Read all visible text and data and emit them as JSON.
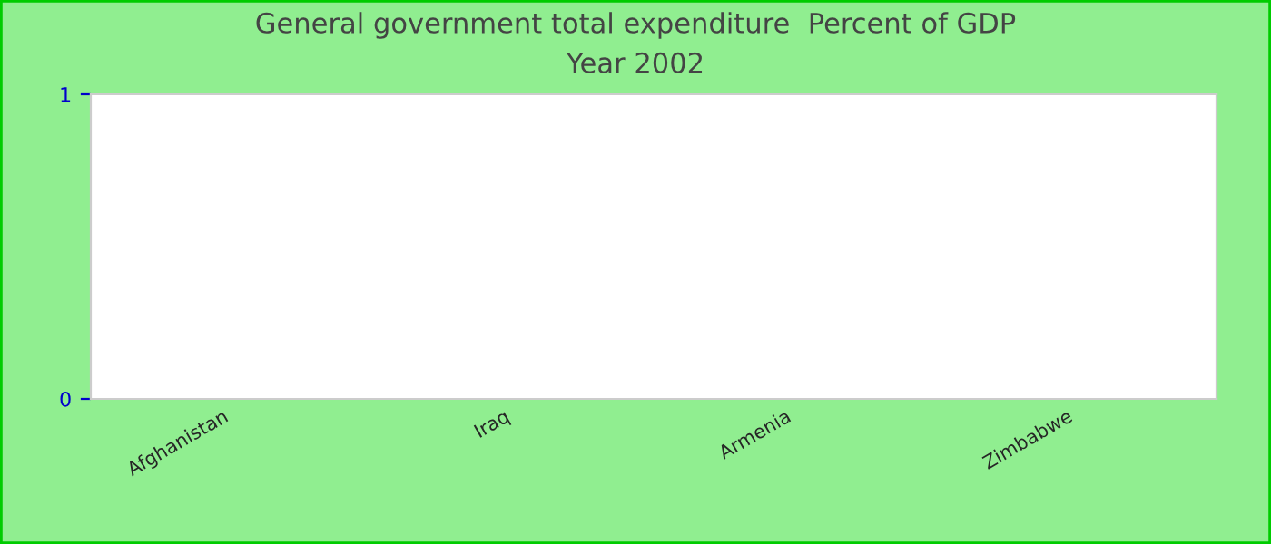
{
  "chart_data": {
    "type": "bar",
    "title": "General government total expenditure  Percent of GDP",
    "subtitle": "Year 2002",
    "categories": [
      "Afghanistan",
      "Iraq",
      "Armenia",
      "Zimbabwe"
    ],
    "values": [
      null,
      null,
      null,
      null
    ],
    "ylim": [
      0,
      1
    ],
    "yticks": [
      0,
      1
    ],
    "grid": false,
    "legend": false
  }
}
